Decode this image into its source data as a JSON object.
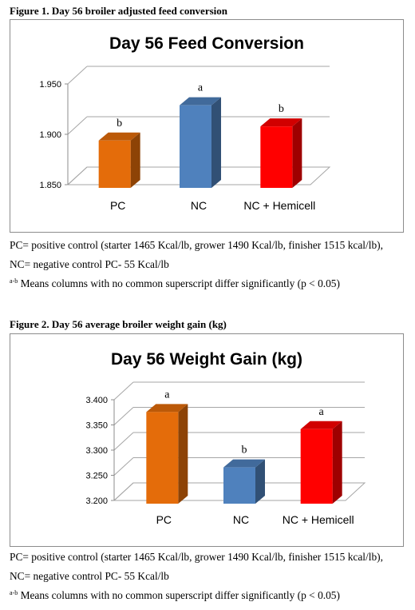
{
  "figures": [
    {
      "heading": "Figure 1. Day 56 broiler adjusted feed conversion",
      "notes": {
        "pc": "PC= positive control (starter 1465 Kcal/lb, grower 1490 Kcal/lb, finisher 1515 kcal/lb),",
        "nc": "NC= negative control PC- 55 Kcal/lb",
        "sig_sup": "a-b",
        "sig_text": " Means columns with no common superscript differ significantly (p < 0.05)"
      }
    },
    {
      "heading": "Figure 2. Day 56 average broiler weight gain (kg)",
      "notes": {
        "pc": "PC= positive control (starter 1465 Kcal/lb, grower 1490 Kcal/lb, finisher 1515 kcal/lb),",
        "nc": "NC= negative control PC- 55 Kcal/lb",
        "sig_sup": "a-b",
        "sig_text": " Means columns with no common superscript differ significantly (p < 0.05)"
      }
    }
  ],
  "chart_data": [
    {
      "type": "bar",
      "title": "Day 56 Feed Conversion",
      "categories": [
        "PC",
        "NC",
        "NC + Hemicell"
      ],
      "values": [
        1.897,
        1.932,
        1.911
      ],
      "data_labels": [
        "b",
        "a",
        "b"
      ],
      "colors": [
        "#e46c0a",
        "#4f81bd",
        "#ff0000"
      ],
      "ylim": [
        1.85,
        1.95
      ],
      "yticks": [
        "1.850",
        "1.900",
        "1.950"
      ],
      "grid": true,
      "legend": "none",
      "style": "3d"
    },
    {
      "type": "bar",
      "title": "Day 56 Weight Gain (kg)",
      "categories": [
        "PC",
        "NC",
        "NC + Hemicell"
      ],
      "values": [
        3.382,
        3.272,
        3.348
      ],
      "data_labels": [
        "a",
        "b",
        "a"
      ],
      "colors": [
        "#e46c0a",
        "#4f81bd",
        "#ff0000"
      ],
      "ylim": [
        3.2,
        3.4
      ],
      "yticks": [
        "3.200",
        "3.250",
        "3.300",
        "3.350",
        "3.400"
      ],
      "grid": true,
      "legend": "none",
      "style": "3d"
    }
  ]
}
